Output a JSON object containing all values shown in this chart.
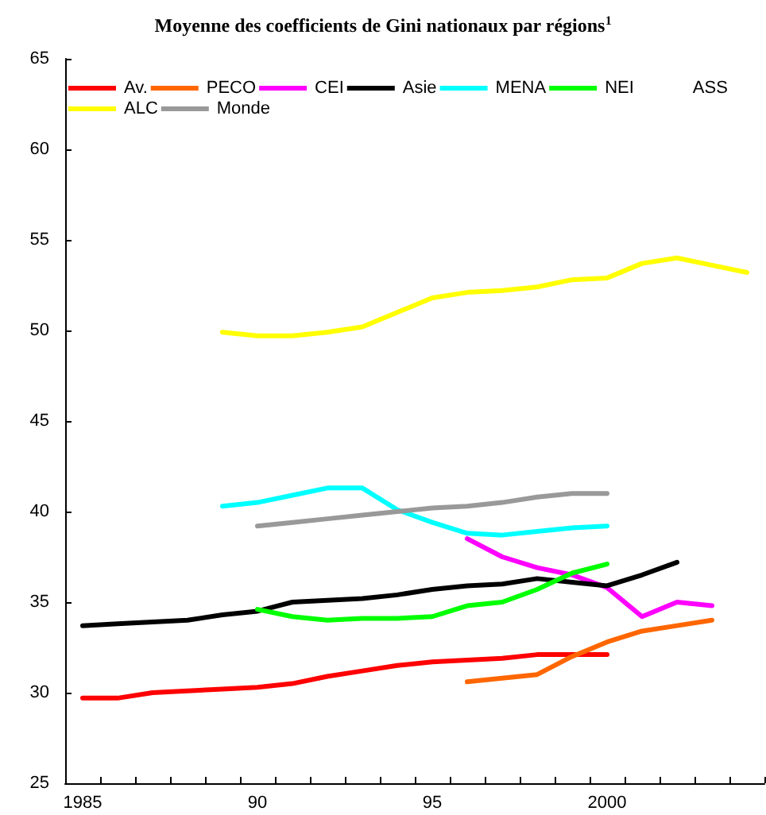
{
  "chart_data": {
    "type": "line",
    "title": "Moyenne des coefficients de Gini nationaux par régions$^{1}$",
    "categories": [
      "1985",
      null,
      null,
      null,
      null,
      "90",
      null,
      null,
      null,
      null,
      "95",
      null,
      null,
      null,
      null,
      "2000",
      null,
      null,
      null,
      null
    ],
    "ylim": [
      25,
      65
    ],
    "yticks": [
      25,
      30,
      35,
      40,
      45,
      50,
      55,
      60,
      65
    ],
    "grid": false,
    "legend": "top",
    "marker": "none",
    "line_style": "solid",
    "series": [
      {
        "name": "Av.",
        "color": "#ff0000",
        "values": [
          29.7,
          29.7,
          30.0,
          30.1,
          30.2,
          30.3,
          30.5,
          30.9,
          31.2,
          31.5,
          31.7,
          31.8,
          31.9,
          32.1,
          32.1,
          32.1,
          null,
          null,
          null,
          null
        ]
      },
      {
        "name": "PECO",
        "color": "#ff6600",
        "values": [
          null,
          null,
          null,
          null,
          null,
          null,
          null,
          null,
          null,
          null,
          null,
          30.6,
          30.8,
          31.0,
          32.0,
          32.8,
          33.4,
          33.7,
          34.0,
          null
        ]
      },
      {
        "name": "CEI",
        "color": "#ff00ff",
        "values": [
          null,
          null,
          null,
          null,
          null,
          null,
          null,
          null,
          null,
          null,
          null,
          38.5,
          37.5,
          36.9,
          36.5,
          35.8,
          34.2,
          35.0,
          34.8,
          null
        ]
      },
      {
        "name": "Asie",
        "color": "#000000",
        "values": [
          33.7,
          33.8,
          33.9,
          34.0,
          34.3,
          34.5,
          35.0,
          35.1,
          35.2,
          35.4,
          35.7,
          35.9,
          36.0,
          36.3,
          36.1,
          35.9,
          36.5,
          37.2,
          null,
          null
        ]
      },
      {
        "name": "MENA",
        "color": "#00ffff",
        "values": [
          null,
          null,
          null,
          null,
          40.3,
          40.5,
          40.9,
          41.3,
          41.3,
          40.1,
          39.4,
          38.8,
          38.7,
          38.9,
          39.1,
          39.2,
          null,
          null,
          null,
          null
        ]
      },
      {
        "name": "NEI",
        "color": "#00ff00",
        "values": [
          null,
          null,
          null,
          null,
          null,
          34.6,
          34.2,
          34.0,
          34.1,
          34.1,
          34.2,
          34.8,
          35.0,
          35.7,
          36.6,
          37.1,
          null,
          null,
          null,
          null
        ]
      },
      {
        "name": "ASS",
        "values": [
          null,
          null,
          null,
          null,
          null,
          null,
          null,
          null,
          null,
          null,
          null,
          null,
          null,
          null,
          null,
          null,
          null,
          null,
          null,
          null
        ]
      },
      {
        "name": "ALC",
        "color": "#ffff00",
        "values": [
          null,
          null,
          null,
          null,
          49.9,
          49.7,
          49.7,
          49.9,
          50.2,
          51.0,
          51.8,
          52.1,
          52.2,
          52.4,
          52.8,
          52.9,
          53.7,
          54.0,
          53.6,
          53.2
        ]
      },
      {
        "name": "Monde",
        "color": "#999999",
        "values": [
          null,
          null,
          null,
          null,
          null,
          39.2,
          39.4,
          39.6,
          39.8,
          40.0,
          40.2,
          40.3,
          40.5,
          40.8,
          41.0,
          41.0,
          null,
          null,
          null,
          null
        ]
      }
    ]
  }
}
